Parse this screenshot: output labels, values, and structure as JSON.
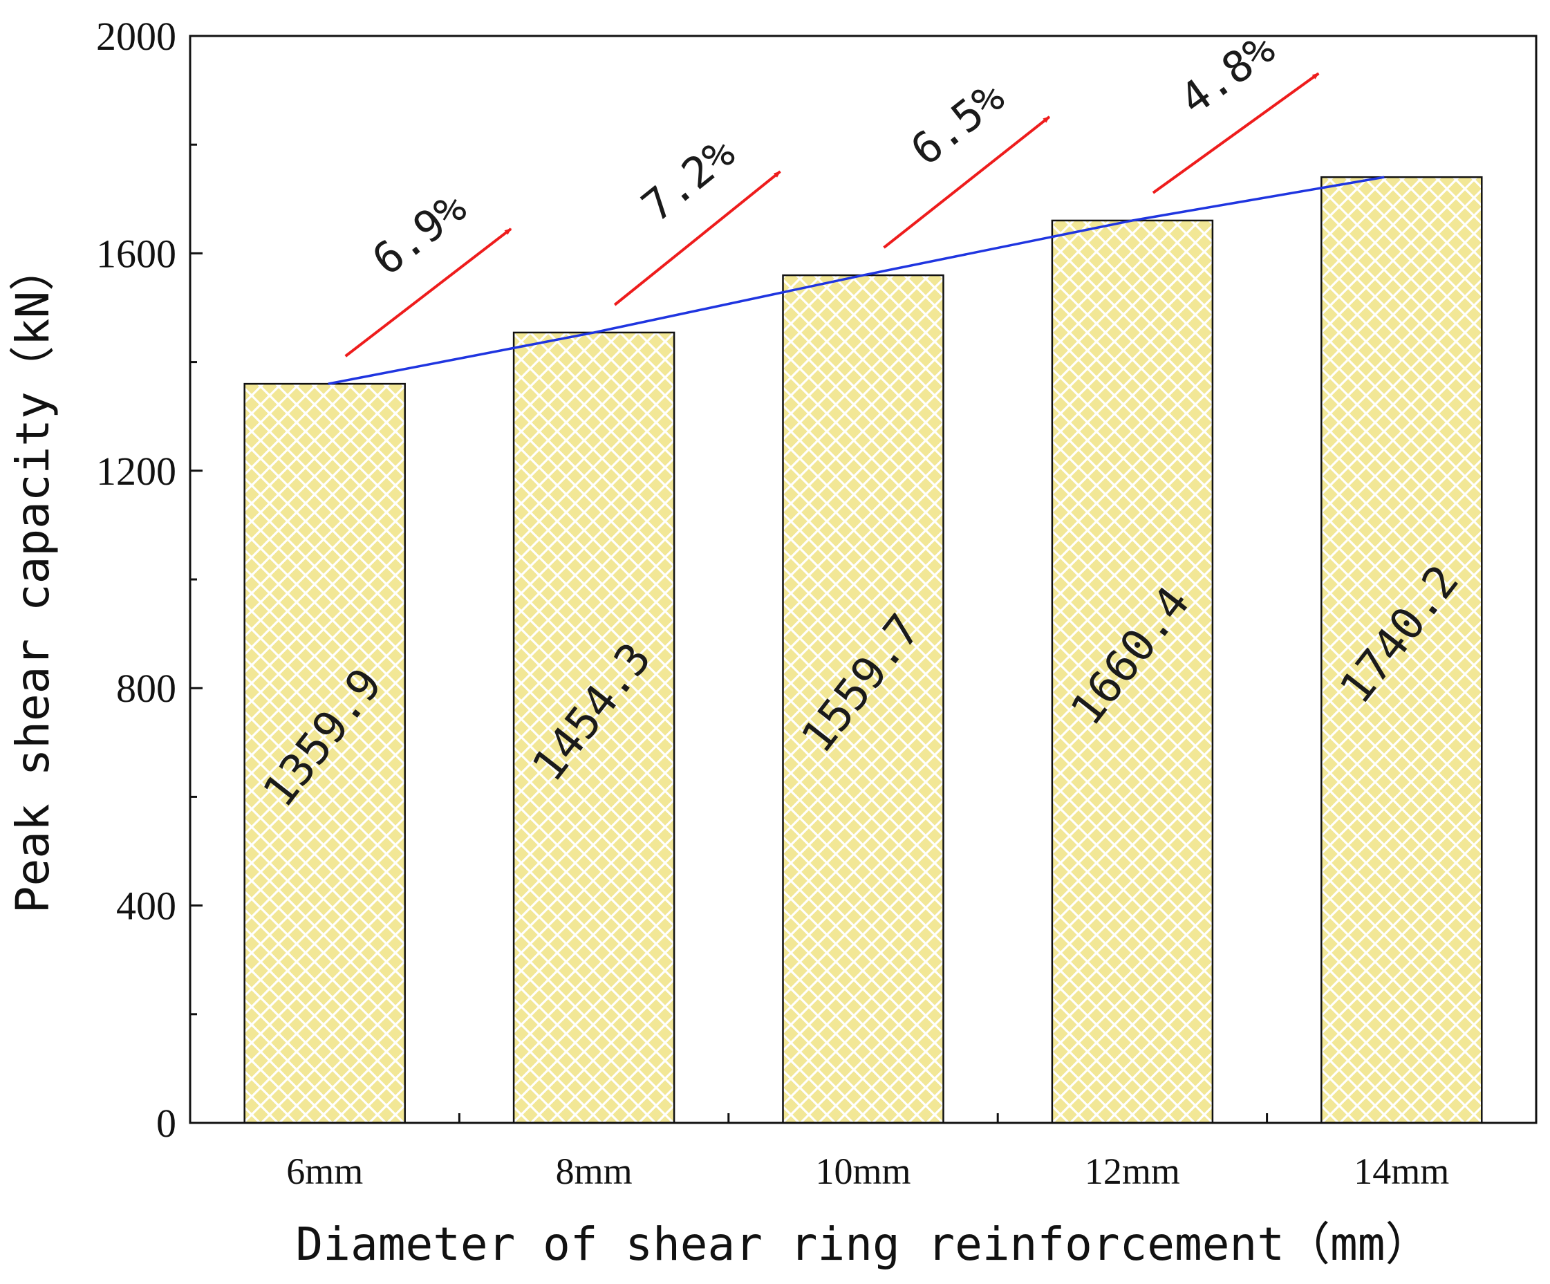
{
  "chart_data": {
    "type": "bar",
    "title": "",
    "xlabel": "Diameter of shear ring reinforcement（mm）",
    "ylabel": "Peak shear capacity（kN）",
    "categories": [
      "6mm",
      "8mm",
      "10mm",
      "12mm",
      "14mm"
    ],
    "values": [
      1359.9,
      1454.3,
      1559.7,
      1660.4,
      1740.2
    ],
    "value_labels": [
      "1359.9",
      "1454.3",
      "1559.7",
      "1660.4",
      "1740.2"
    ],
    "ylim": [
      0,
      2000
    ],
    "yticks": [
      0,
      400,
      800,
      1200,
      1600,
      2000
    ],
    "yticks_minor": [
      200,
      600,
      1000,
      1400,
      1800
    ],
    "increase_labels": [
      "6.9%",
      "7.2%",
      "6.5%",
      "4.8%"
    ],
    "trend_line": true,
    "grid": false,
    "colors": {
      "bar_fill": "#f2e796",
      "bar_hatch": "#ffffff",
      "bar_edge": "#111111",
      "trend_line": "#1f35e0",
      "arrow": "#ee1c1c",
      "axis": "#111111"
    }
  }
}
